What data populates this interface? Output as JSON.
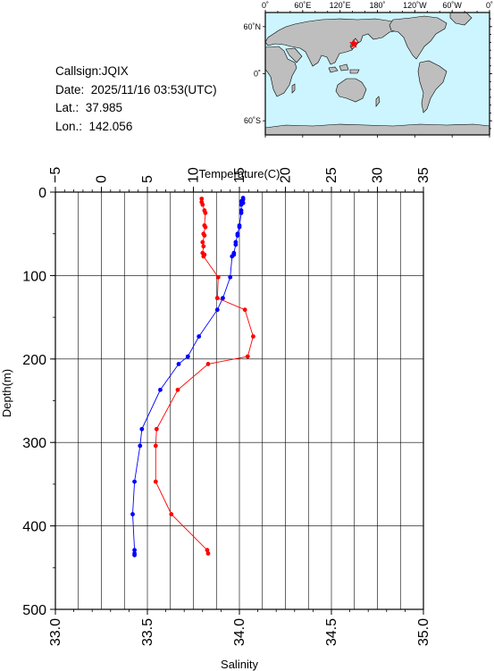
{
  "info": {
    "callsign": "Callsign:JQIX",
    "date": "Date:  2025/11/16 03:53(UTC)",
    "lat": "Lat.:  37.985",
    "lon": "Lon.:  142.056"
  },
  "map": {
    "lon_labels": [
      "0˚",
      "60˚E",
      "120˚E",
      "180˚",
      "120˚W",
      "60˚W",
      "0˚"
    ],
    "lat_labels": [
      "60˚N",
      "0˚",
      "60˚S"
    ],
    "ocean_color": "#ccf5ff",
    "land_color": "#bebebe",
    "marker": {
      "lat": 37.985,
      "lon": 142.056,
      "symbol": "star",
      "color": "#ff0000"
    }
  },
  "chart_data": {
    "type": "line",
    "title": "",
    "ylabel": "Depth(m)",
    "ylim": [
      0,
      500
    ],
    "y_ticks": [
      0,
      100,
      200,
      300,
      400,
      500
    ],
    "y_tick_labels": [
      "0",
      "100",
      "200",
      "300",
      "400",
      "500"
    ],
    "top_axis": {
      "label": "Temperature(C)",
      "range": [
        -5,
        35
      ],
      "ticks": [
        -5,
        0,
        5,
        10,
        15,
        20,
        25,
        30,
        35
      ],
      "tick_labels": [
        "−5",
        "0",
        "5",
        "10",
        "15",
        "20",
        "25",
        "30",
        "35"
      ]
    },
    "bottom_axis": {
      "label": "Salinity",
      "range": [
        33.0,
        35.0
      ],
      "ticks": [
        33.0,
        33.5,
        34.0,
        34.5,
        35.0
      ],
      "tick_labels": [
        "33.0",
        "33.5",
        "34.0",
        "34.5",
        "35.0"
      ]
    },
    "grid": true,
    "series": [
      {
        "axis": "temperature",
        "color": "#ff0000",
        "points": [
          [
            10.9,
            8
          ],
          [
            10.9,
            12
          ],
          [
            11.0,
            15
          ],
          [
            11.2,
            22
          ],
          [
            11.3,
            25
          ],
          [
            11.2,
            40
          ],
          [
            11.3,
            42
          ],
          [
            11.1,
            50
          ],
          [
            11.2,
            52
          ],
          [
            11.0,
            60
          ],
          [
            11.1,
            65
          ],
          [
            11.0,
            73
          ],
          [
            11.2,
            75
          ],
          [
            11.1,
            77
          ],
          [
            12.7,
            102
          ],
          [
            12.6,
            127
          ],
          [
            15.6,
            141
          ],
          [
            16.5,
            173
          ],
          [
            15.9,
            197
          ],
          [
            11.6,
            206
          ],
          [
            8.3,
            237
          ],
          [
            6.0,
            284
          ],
          [
            5.9,
            304
          ],
          [
            5.9,
            347
          ],
          [
            7.6,
            386
          ],
          [
            11.5,
            429
          ],
          [
            11.6,
            433
          ]
        ]
      },
      {
        "axis": "salinity",
        "color": "#0000ff",
        "points": [
          [
            34.02,
            7
          ],
          [
            34.02,
            9
          ],
          [
            34.01,
            11
          ],
          [
            34.02,
            13
          ],
          [
            34.01,
            15
          ],
          [
            34.01,
            22
          ],
          [
            34.01,
            25
          ],
          [
            34.0,
            40
          ],
          [
            34.0,
            42
          ],
          [
            33.99,
            50
          ],
          [
            33.99,
            52
          ],
          [
            33.98,
            60
          ],
          [
            33.98,
            63
          ],
          [
            33.97,
            73
          ],
          [
            33.97,
            75
          ],
          [
            33.96,
            77
          ],
          [
            33.95,
            102
          ],
          [
            33.91,
            127
          ],
          [
            33.88,
            141
          ],
          [
            33.78,
            173
          ],
          [
            33.72,
            197
          ],
          [
            33.67,
            206
          ],
          [
            33.57,
            237
          ],
          [
            33.47,
            284
          ],
          [
            33.46,
            304
          ],
          [
            33.43,
            347
          ],
          [
            33.42,
            386
          ],
          [
            33.43,
            429
          ],
          [
            33.43,
            433
          ],
          [
            33.43,
            435
          ]
        ]
      }
    ]
  }
}
